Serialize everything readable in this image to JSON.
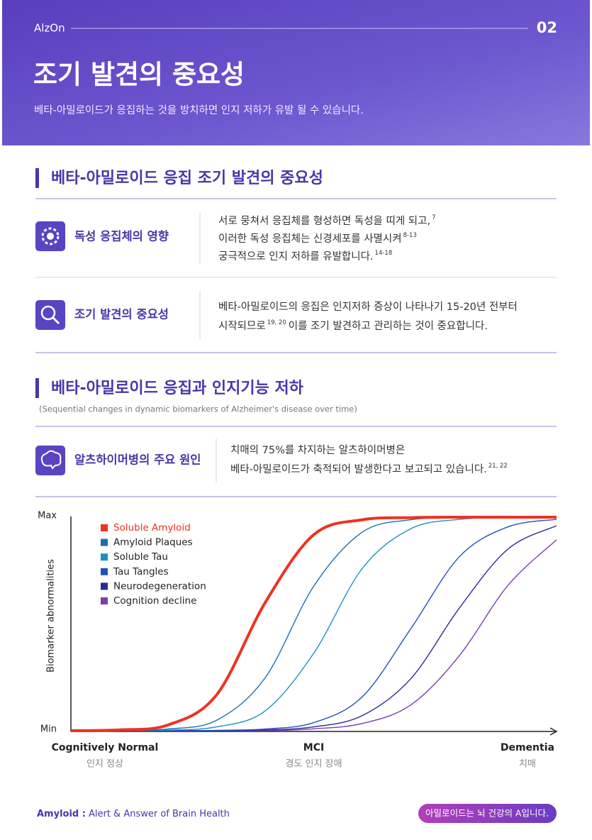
{
  "header": {
    "brand": "AlzOn",
    "page": "02",
    "title": "조기 발견의 중요성",
    "subtitle": "베타-아밀로이드가 응집하는 것을 방치하면 인지 저하가 유발 될 수 있습니다."
  },
  "section1": {
    "heading": "베타-아밀로이드 응집 조기 발견의 중요성",
    "items": [
      {
        "label": "독성 응집체의 영향",
        "lines": [
          [
            {
              "t": "서로 뭉쳐서 응집체를 형성하면 독성을 띠게 되고,"
            },
            {
              "sup": "7"
            }
          ],
          [
            {
              "t": "이러한 독성 응집체는 신경세포를 사멸시켜"
            },
            {
              "sup": "8-13"
            }
          ],
          [
            {
              "t": "궁극적으로 인지 저하를 유발합니다."
            },
            {
              "sup": "14-18"
            }
          ]
        ]
      },
      {
        "label": "조기 발견의 중요성",
        "lines": [
          [
            {
              "t": "베타-아밀로이드의 응집은 인지저하 증상이 나타나기 15-20년 전부터"
            }
          ],
          [
            {
              "t": "시작되므로"
            },
            {
              "sup": "19, 20"
            },
            {
              "t": "이를 조기 발견하고 관리하는 것이 중요합니다."
            }
          ]
        ]
      }
    ]
  },
  "section2": {
    "heading": "베타-아밀로이드 응집과 인지기능 저하",
    "caption": "(Sequential changes in dynamic biomarkers of Alzheimer's disease over time)",
    "items": [
      {
        "label": "알츠하이머병의 주요 원인",
        "lines": [
          [
            {
              "t": "치매의 75%를 차지하는 알츠하이머병은"
            }
          ],
          [
            {
              "t": "베타-아밀로이드가 축적되어 발생한다고 보고되고 있습니다."
            },
            {
              "sup": "21, 22"
            }
          ]
        ]
      }
    ]
  },
  "chart_data": {
    "type": "line",
    "ylabel": "Biomarker abnormalities",
    "x": [
      0,
      10,
      20,
      30,
      40,
      50,
      60,
      70,
      80,
      90,
      100
    ],
    "xlim": [
      0,
      100
    ],
    "xticks": [
      {
        "value": 7,
        "label": "Cognitively Normal"
      },
      {
        "value": 50,
        "label": "MCI"
      },
      {
        "value": 94,
        "label": "Dementia"
      }
    ],
    "xtick_sublabels": [
      "인지 정상",
      "경도 인지 장애",
      "치매"
    ],
    "ylim": [
      0,
      100
    ],
    "yticks": [
      {
        "value": 0,
        "label": "Min"
      },
      {
        "value": 100,
        "label": "Max"
      }
    ],
    "highlight_series": 0,
    "legend": "upper left",
    "series": [
      {
        "name": "Soluble Amyloid",
        "color": "#ec3322",
        "values": [
          0,
          0.4,
          2.7,
          16.8,
          60,
          91.8,
          98.8,
          99.8,
          100,
          100,
          100
        ]
      },
      {
        "name": "Amyloid Plaques",
        "color": "#1b6db4",
        "values": [
          0,
          0.1,
          0.8,
          4.9,
          24.8,
          67.7,
          93,
          98.8,
          99.8,
          100,
          100
        ]
      },
      {
        "name": "Soluble Tau",
        "color": "#1f8fc2",
        "values": [
          0,
          0.1,
          0.3,
          1.8,
          9.3,
          36.3,
          76,
          94.6,
          99,
          99.8,
          100
        ]
      },
      {
        "name": "Tau Tangles",
        "color": "#2451b8",
        "values": [
          0,
          0,
          0.05,
          0.2,
          0.8,
          3.8,
          15.9,
          47.8,
          81.5,
          95.5,
          99
        ]
      },
      {
        "name": "Neurodegeneration",
        "color": "#2b2896",
        "values": [
          0,
          0,
          0,
          0.1,
          0.4,
          1.8,
          7.1,
          24.4,
          57.5,
          85.1,
          96
        ]
      },
      {
        "name": "Cognition decline",
        "color": "#7b3db2",
        "values": [
          0,
          0,
          0,
          0,
          0,
          0.9,
          3.4,
          12.1,
          35.2,
          68.1,
          89.4
        ]
      }
    ]
  },
  "footer": {
    "brand": "Amyloid :",
    "tagline": "Alert & Answer of Brain Health",
    "badge": "아밀로이드는 뇌 건강의 A입니다."
  }
}
